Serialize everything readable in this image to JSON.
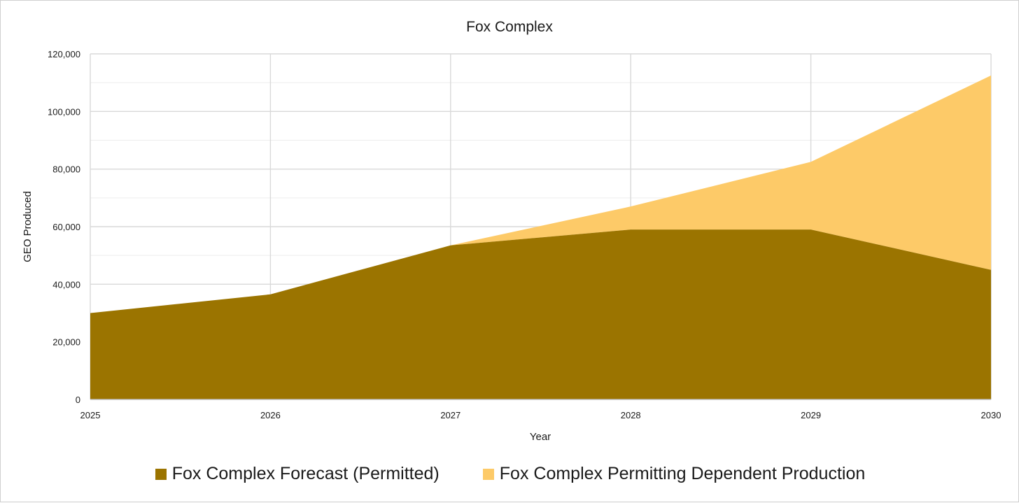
{
  "chart_data": {
    "type": "area",
    "stacked": true,
    "title": "Fox Complex",
    "xlabel": "Year",
    "ylabel": "GEO Produced",
    "x": [
      "2025",
      "2026",
      "2027",
      "2028",
      "2029",
      "2030"
    ],
    "y_ticks": [
      "0",
      "20,000",
      "40,000",
      "60,000",
      "80,000",
      "100,000",
      "120,000"
    ],
    "ylim": [
      0,
      120000
    ],
    "grid": true,
    "legend_position": "bottom",
    "series": [
      {
        "name": "Fox Complex Forecast (Permitted)",
        "color": "#9b7400",
        "values": [
          30000,
          36500,
          53500,
          59000,
          59000,
          45000
        ]
      },
      {
        "name": "Fox Complex Permitting Dependent Production",
        "color": "#fdca68",
        "values": [
          0,
          0,
          0,
          8000,
          23500,
          67500
        ]
      }
    ]
  }
}
